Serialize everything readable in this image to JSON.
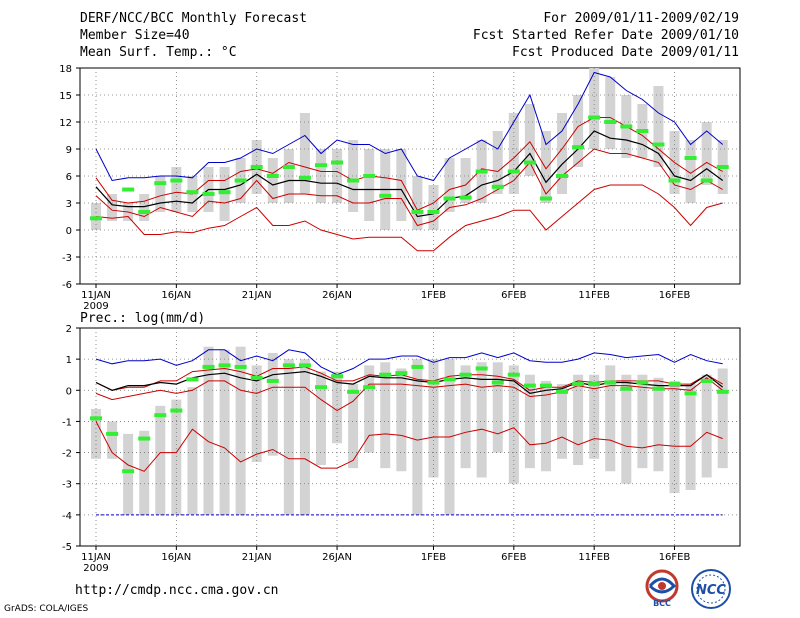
{
  "header": {
    "title": "DERF/NCC/BCC Monthly Forecast",
    "member_size": "Member Size=40",
    "variable": "Mean Surf. Temp.: °C",
    "period": "For 2009/01/11-2009/02/19",
    "started": "Fcst Started Refer Date 2009/01/10",
    "produced": "Fcst Produced Date 2009/01/11"
  },
  "footer": {
    "url": "http://cmdp.ncc.cma.gov.cn",
    "credit": "GrADS: COLA/IGES",
    "logo_left": "BCC",
    "logo_right": "NCC"
  },
  "colors": {
    "max_min": "#0000cc",
    "band": "#cc0000",
    "mean": "#000000",
    "box": "#d3d3d3",
    "marker": "#33ee33"
  },
  "chart_data": [
    {
      "type": "line",
      "title": "Mean Surf. Temp.: °C",
      "x": [
        1,
        2,
        3,
        4,
        5,
        6,
        7,
        8,
        9,
        10,
        11,
        12,
        13,
        14,
        15,
        16,
        17,
        18,
        19,
        20,
        21,
        22,
        23,
        24,
        25,
        26,
        27,
        28,
        29,
        30,
        31,
        32,
        33,
        34,
        35,
        36,
        37,
        38,
        39,
        40
      ],
      "xticks": [
        {
          "day": 1,
          "label": "11JAN",
          "sub": "2009"
        },
        {
          "day": 6,
          "label": "16JAN"
        },
        {
          "day": 11,
          "label": "21JAN"
        },
        {
          "day": 16,
          "label": "26JAN"
        },
        {
          "day": 22,
          "label": "1FEB"
        },
        {
          "day": 27,
          "label": "6FEB"
        },
        {
          "day": 32,
          "label": "11FEB"
        },
        {
          "day": 37,
          "label": "16FEB"
        }
      ],
      "ylim": [
        -6,
        18
      ],
      "yticks": [
        -6,
        -3,
        0,
        3,
        6,
        9,
        12,
        15,
        18
      ],
      "series": [
        {
          "name": "max",
          "values": [
            9,
            5.5,
            5.8,
            5.8,
            6,
            6,
            5.8,
            7.5,
            7.5,
            8,
            9,
            8.5,
            9.5,
            10.5,
            8.5,
            10,
            9.5,
            9.5,
            8.5,
            9,
            6,
            5.5,
            8,
            9,
            10,
            9,
            12,
            15,
            9.5,
            11,
            14,
            17.5,
            17,
            15.5,
            14.5,
            13,
            12,
            9.5,
            11,
            9.5
          ]
        },
        {
          "name": "upper",
          "values": [
            5.8,
            3.3,
            3,
            3.2,
            3.8,
            4.2,
            4,
            5.5,
            5.5,
            6.5,
            6.8,
            6.3,
            7.5,
            7,
            6.5,
            6.5,
            5.5,
            6,
            5.8,
            5.5,
            2.2,
            3,
            4.5,
            5,
            6.8,
            6.5,
            8,
            9.8,
            6.8,
            9,
            11.5,
            12.5,
            12.5,
            11.5,
            10.5,
            9,
            7.5,
            6.3,
            7.5,
            6.5
          ]
        },
        {
          "name": "mean",
          "values": [
            4.8,
            2.8,
            2.6,
            2.6,
            3,
            3.2,
            3,
            4.5,
            4.5,
            5,
            6.2,
            5,
            5.5,
            5.5,
            5.2,
            5.2,
            4.5,
            4.5,
            4.5,
            4.5,
            1.5,
            1.8,
            3.5,
            3.8,
            5,
            5.5,
            6.5,
            8.5,
            5.3,
            7.3,
            9,
            11,
            10.2,
            10,
            9.5,
            8.5,
            6,
            5.5,
            6.8,
            5.5
          ]
        },
        {
          "name": "lower",
          "values": [
            3.8,
            2.2,
            2,
            1.5,
            2.5,
            2,
            1.5,
            3.2,
            3,
            3.5,
            5.5,
            3.5,
            4,
            4,
            3.8,
            3.8,
            3,
            3,
            3.5,
            3.5,
            0.5,
            1,
            2.5,
            2.8,
            3.5,
            4.5,
            5.5,
            7.5,
            4,
            6,
            7.5,
            9,
            8.5,
            8.5,
            8,
            7.5,
            5,
            4.5,
            5.5,
            4.5
          ]
        },
        {
          "name": "min",
          "values": [
            1.5,
            1.3,
            1.5,
            -0.5,
            -0.5,
            -0.2,
            -0.3,
            0.2,
            0.5,
            1.5,
            2.5,
            0.5,
            0.5,
            1,
            0,
            -0.5,
            -1,
            -0.8,
            -0.8,
            -0.8,
            -2.3,
            -2.3,
            -0.8,
            0.5,
            1,
            1.5,
            2.2,
            2.2,
            0,
            1.5,
            3,
            4.5,
            5,
            5,
            5,
            4,
            2.5,
            0.5,
            2.5,
            3
          ]
        }
      ],
      "boxes": [
        [
          0,
          3
        ],
        [
          1,
          4
        ],
        [
          1,
          3
        ],
        [
          1,
          4
        ],
        [
          2,
          6
        ],
        [
          2,
          7
        ],
        [
          2,
          6
        ],
        [
          2,
          7
        ],
        [
          1,
          7
        ],
        [
          3,
          8
        ],
        [
          4,
          10
        ],
        [
          3,
          8
        ],
        [
          3,
          9
        ],
        [
          4,
          13
        ],
        [
          3,
          9
        ],
        [
          3,
          9
        ],
        [
          2,
          10
        ],
        [
          1,
          9
        ],
        [
          0,
          9
        ],
        [
          1,
          9
        ],
        [
          0,
          6
        ],
        [
          0,
          5
        ],
        [
          2,
          8
        ],
        [
          3,
          8
        ],
        [
          3,
          10
        ],
        [
          4,
          11
        ],
        [
          4,
          13
        ],
        [
          6,
          14
        ],
        [
          3,
          11
        ],
        [
          4,
          13
        ],
        [
          7,
          15
        ],
        [
          9,
          18
        ],
        [
          9,
          17
        ],
        [
          8,
          15
        ],
        [
          8,
          14
        ],
        [
          7,
          16
        ],
        [
          4,
          11
        ],
        [
          3,
          10
        ],
        [
          5,
          12
        ],
        [
          4,
          10
        ]
      ],
      "markers": [
        1.3,
        null,
        4.5,
        2,
        5.2,
        5.5,
        4.2,
        4,
        4.2,
        5.5,
        7,
        6,
        7,
        5.8,
        7.2,
        7.5,
        5.5,
        6,
        3.8,
        null,
        2,
        2,
        3.5,
        3.6,
        6.5,
        4.8,
        6.5,
        7.5,
        3.5,
        6,
        9.2,
        12.5,
        12,
        11.5,
        11,
        9.5,
        5.5,
        8,
        5.5,
        7
      ]
    },
    {
      "type": "line",
      "title": "Prec.: log(mm/d)",
      "x": [
        1,
        2,
        3,
        4,
        5,
        6,
        7,
        8,
        9,
        10,
        11,
        12,
        13,
        14,
        15,
        16,
        17,
        18,
        19,
        20,
        21,
        22,
        23,
        24,
        25,
        26,
        27,
        28,
        29,
        30,
        31,
        32,
        33,
        34,
        35,
        36,
        37,
        38,
        39,
        40
      ],
      "xticks": [
        {
          "day": 1,
          "label": "11JAN",
          "sub": "2009"
        },
        {
          "day": 6,
          "label": "16JAN"
        },
        {
          "day": 11,
          "label": "21JAN"
        },
        {
          "day": 16,
          "label": "26JAN"
        },
        {
          "day": 22,
          "label": "1FEB"
        },
        {
          "day": 27,
          "label": "6FEB"
        },
        {
          "day": 32,
          "label": "11FEB"
        },
        {
          "day": 37,
          "label": "16FEB"
        }
      ],
      "ylim": [
        -5,
        2
      ],
      "yticks": [
        -5,
        -4,
        -3,
        -2,
        -1,
        0,
        1,
        2
      ],
      "series": [
        {
          "name": "max",
          "values": [
            1,
            0.85,
            0.95,
            0.95,
            1,
            0.8,
            0.95,
            1.3,
            1.3,
            0.95,
            1.1,
            0.95,
            1.3,
            1.2,
            0.75,
            0.5,
            0.7,
            1,
            1,
            1.1,
            1.1,
            0.9,
            1.05,
            1.05,
            1.2,
            1.05,
            1.2,
            0.95,
            0.9,
            0.9,
            1,
            1.2,
            1.15,
            1.05,
            1.1,
            1.15,
            0.9,
            1.15,
            0.95,
            0.85
          ]
        },
        {
          "name": "upper",
          "values": [
            0.25,
            0,
            0.1,
            0.1,
            0.3,
            0.3,
            0.6,
            0.65,
            0.7,
            0.6,
            0.45,
            0.7,
            0.7,
            0.75,
            0.55,
            0.3,
            0.3,
            0.5,
            0.45,
            0.5,
            0.35,
            0.3,
            0.45,
            0.5,
            0.5,
            0.45,
            0.35,
            0,
            0.1,
            0.1,
            0.3,
            0.25,
            0.3,
            0.3,
            0.3,
            0.3,
            0.2,
            0.2,
            0.5,
            0.2
          ]
        },
        {
          "name": "mean",
          "values": [
            0.25,
            0,
            0.15,
            0.15,
            0.25,
            0.2,
            0.4,
            0.5,
            0.55,
            0.4,
            0.3,
            0.5,
            0.55,
            0.6,
            0.45,
            0.25,
            0.2,
            0.45,
            0.4,
            0.4,
            0.3,
            0.25,
            0.35,
            0.4,
            0.35,
            0.35,
            0.3,
            -0.1,
            0,
            0.05,
            0.25,
            0.15,
            0.25,
            0.25,
            0.2,
            0.15,
            0.15,
            0.15,
            0.5,
            0.1
          ]
        },
        {
          "name": "lower",
          "values": [
            -0.1,
            -0.3,
            -0.2,
            -0.1,
            0,
            -0.1,
            0,
            0.3,
            0.3,
            0,
            -0.1,
            0.1,
            0.1,
            0.1,
            -0.3,
            -0.65,
            -0.35,
            0.2,
            0.2,
            0.2,
            0.15,
            0.1,
            0.15,
            0.2,
            0.1,
            0.15,
            0.1,
            -0.2,
            -0.15,
            -0.05,
            0.15,
            0.05,
            0.15,
            0.15,
            0.1,
            0.05,
            0.05,
            0,
            0.4,
            0
          ]
        },
        {
          "name": "min",
          "values": [
            -1,
            -2,
            -2.4,
            -2.6,
            -2,
            -2,
            -1.25,
            -1.65,
            -1.85,
            -2.3,
            -2.05,
            -1.9,
            -2.2,
            -2.2,
            -2.5,
            -2.5,
            -2.25,
            -1.45,
            -1.4,
            -1.45,
            -1.6,
            -1.5,
            -1.5,
            -1.35,
            -1.25,
            -1.4,
            -1.2,
            -1.75,
            -1.7,
            -1.5,
            -1.75,
            -1.55,
            -1.6,
            -1.8,
            -1.85,
            -1.75,
            -1.8,
            -1.8,
            -1.35,
            -1.55
          ]
        },
        {
          "name": "floor",
          "values": [
            -4,
            -4,
            -4,
            -4,
            -4,
            -4,
            -4,
            -4,
            -4,
            -4,
            -4,
            -4,
            -4,
            -4,
            -4,
            -4,
            -4,
            -4,
            -4,
            -4,
            -4,
            -4,
            -4,
            -4,
            -4,
            -4,
            -4,
            -4,
            -4,
            -4,
            -4,
            -4,
            -4,
            -4,
            -4,
            -4,
            -4,
            -4,
            -4,
            -4
          ]
        }
      ],
      "boxes": [
        [
          -2.2,
          -0.6
        ],
        [
          -2.2,
          -1
        ],
        [
          -4,
          -1.4
        ],
        [
          -4,
          -1.3
        ],
        [
          -4,
          -0.5
        ],
        [
          -4,
          -0.3
        ],
        [
          -4,
          0.1
        ],
        [
          -4,
          1.4
        ],
        [
          -4,
          1.3
        ],
        [
          -4,
          1.4
        ],
        [
          -2.3,
          0.8
        ],
        [
          -2.1,
          1.2
        ],
        [
          -4,
          1
        ],
        [
          -4,
          1
        ],
        [
          -2.4,
          0.6
        ],
        [
          -1.7,
          0.6
        ],
        [
          -2.5,
          0.2
        ],
        [
          -2,
          0.8
        ],
        [
          -2.5,
          0.9
        ],
        [
          -2.6,
          0.7
        ],
        [
          -4,
          1
        ],
        [
          -2.8,
          1
        ],
        [
          -4,
          1
        ],
        [
          -2.5,
          0.8
        ],
        [
          -2.8,
          0.9
        ],
        [
          -2,
          0.9
        ],
        [
          -3,
          0.8
        ],
        [
          -2.5,
          0.5
        ],
        [
          -2.6,
          0.3
        ],
        [
          -2.2,
          0.2
        ],
        [
          -2.4,
          0.5
        ],
        [
          -2.2,
          0.5
        ],
        [
          -2.6,
          0.8
        ],
        [
          -3,
          0.5
        ],
        [
          -2.5,
          0.5
        ],
        [
          -2.6,
          0.4
        ],
        [
          -3.3,
          0.3
        ],
        [
          -3.2,
          0.2
        ],
        [
          -2.8,
          0.5
        ],
        [
          -2.5,
          0.7
        ]
      ],
      "markers": [
        -0.9,
        -1.4,
        -2.6,
        -1.55,
        -0.8,
        -0.65,
        0.35,
        0.75,
        0.8,
        0.75,
        0.4,
        0.3,
        0.8,
        0.8,
        0.1,
        0.45,
        -0.05,
        0.1,
        0.5,
        0.55,
        0.75,
        0.25,
        0.35,
        0.5,
        0.7,
        0.25,
        0.5,
        0.15,
        0.15,
        -0.05,
        0.2,
        0.2,
        0.25,
        0.05,
        0.25,
        0.05,
        0.2,
        -0.1,
        0.3,
        -0.05
      ]
    }
  ]
}
